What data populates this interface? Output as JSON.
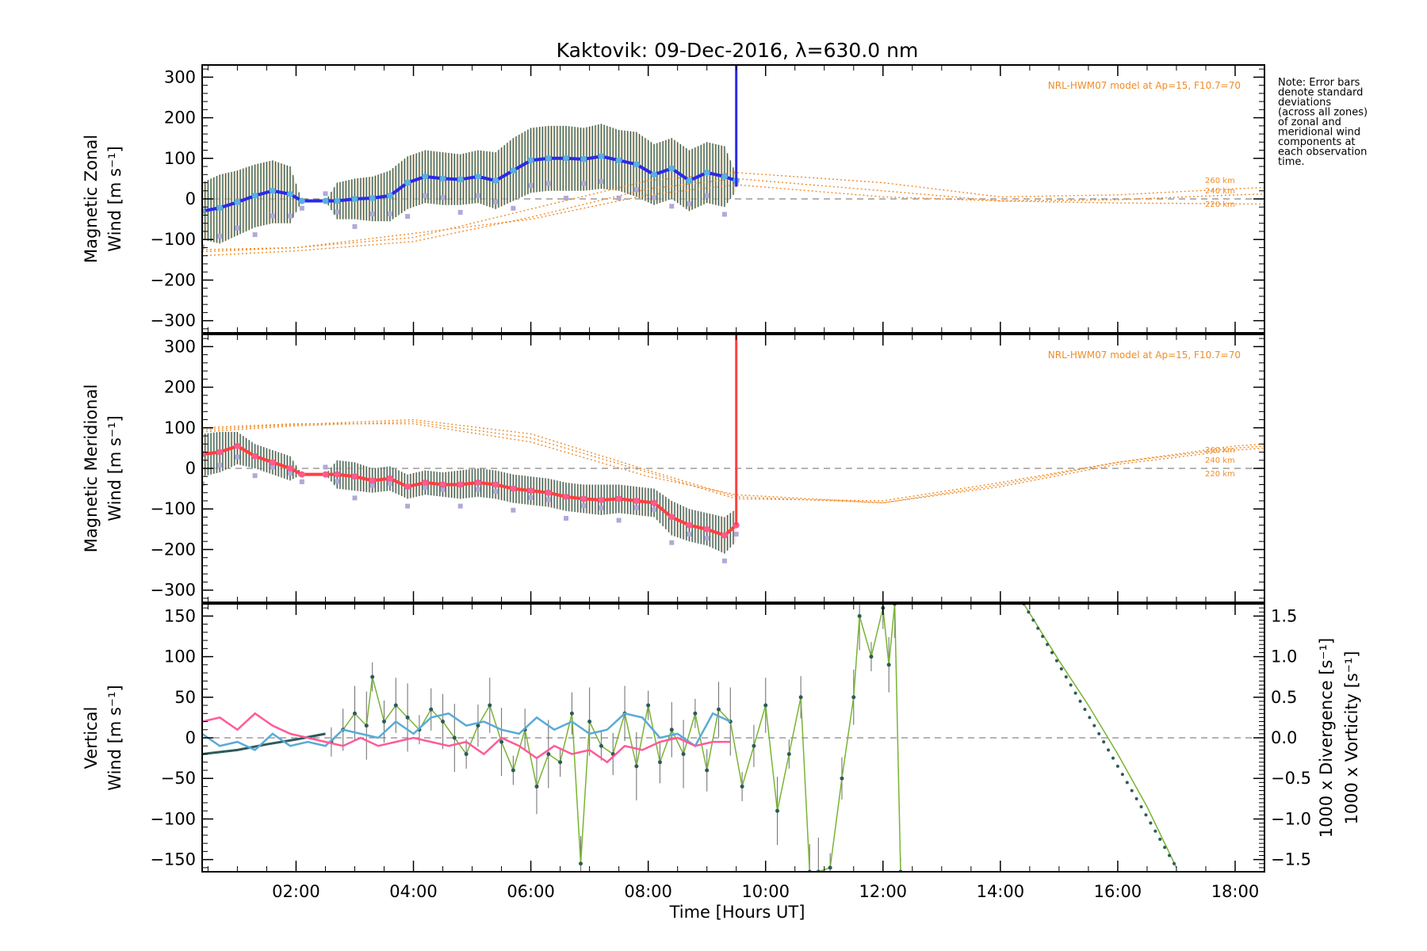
{
  "figure": {
    "title": "Kaktovik: 09-Dec-2016, λ=630.0 nm",
    "note_lines": [
      "Note: Error bars",
      "denote standard",
      "deviations",
      "(across all zones)",
      "of zonal and",
      "meridional wind",
      "components at",
      "each observation",
      "time."
    ],
    "model_label": "NRL-HWM07 model at Ap=15, F10.7=70",
    "altitude_labels": [
      "260 km",
      "240 km",
      "220 km"
    ],
    "xlabel": "Time [Hours UT]",
    "x_tick_labels": [
      "02:00",
      "04:00",
      "06:00",
      "08:00",
      "10:00",
      "12:00",
      "14:00",
      "16:00",
      "18:00"
    ]
  },
  "colors": {
    "zonal_mean": "#2a2ae8",
    "zonal_points": "#5ab0e0",
    "meridional_mean": "#ff4040",
    "meridional_points": "#ff5a8c",
    "model": "#f08c28",
    "vertical": "#78b432",
    "divergence": "#5aaad8",
    "vorticity": "#ff5a9a",
    "error_bar": "#2d5a5a",
    "scatter_lavender": "#b0aad8"
  },
  "chart_data": [
    {
      "type": "line",
      "panel": "zonal",
      "ylabel_lines": [
        "Magnetic Zonal",
        "Wind [m s⁻¹]"
      ],
      "xlim": [
        0.4,
        18.5
      ],
      "ylim": [
        -330,
        330
      ],
      "y_tick_labels": [
        "300",
        "200",
        "100",
        "0",
        "−100",
        "−200",
        "−300"
      ],
      "y_tick_values": [
        300,
        200,
        100,
        0,
        -100,
        -200,
        -300
      ],
      "x_tick_values": [
        2,
        4,
        6,
        8,
        10,
        12,
        14,
        16,
        18
      ],
      "series": [
        {
          "role": "mean",
          "x": [
            0.4,
            0.7,
            1.0,
            1.3,
            1.6,
            1.9,
            2.1,
            2.5,
            2.7,
            3.0,
            3.3,
            3.6,
            3.9,
            4.2,
            4.5,
            4.8,
            5.1,
            5.4,
            5.7,
            6.0,
            6.3,
            6.6,
            6.9,
            7.2,
            7.5,
            7.8,
            8.1,
            8.4,
            8.7,
            9.0,
            9.3,
            9.5
          ],
          "y": [
            -30,
            -22,
            -8,
            8,
            20,
            12,
            -5,
            -5,
            -5,
            0,
            2,
            8,
            40,
            55,
            50,
            48,
            55,
            45,
            70,
            95,
            100,
            100,
            98,
            105,
            95,
            85,
            60,
            75,
            45,
            65,
            55,
            45
          ]
        },
        {
          "role": "upper",
          "y": [
            40,
            60,
            70,
            85,
            95,
            80,
            -5,
            -5,
            40,
            50,
            55,
            70,
            105,
            120,
            115,
            110,
            120,
            115,
            150,
            175,
            180,
            180,
            175,
            185,
            170,
            165,
            135,
            150,
            120,
            140,
            130,
            60
          ]
        },
        {
          "role": "lower",
          "y": [
            -100,
            -110,
            -90,
            -70,
            -60,
            -60,
            -5,
            -5,
            -50,
            -50,
            -55,
            -55,
            -25,
            -10,
            -15,
            -15,
            -10,
            -25,
            -5,
            15,
            20,
            20,
            20,
            25,
            20,
            5,
            -15,
            0,
            -30,
            -10,
            -20,
            20
          ]
        },
        {
          "role": "model_260km",
          "x": [
            0.4,
            2,
            4,
            6,
            8,
            9.5,
            12,
            14,
            16,
            18,
            18.5
          ],
          "y": [
            -130,
            -120,
            -95,
            -25,
            45,
            65,
            40,
            5,
            10,
            25,
            28
          ]
        },
        {
          "role": "model_240km",
          "x": [
            0.4,
            2,
            4,
            6,
            8,
            9.5,
            12,
            14,
            16,
            18,
            18.5
          ],
          "y": [
            -140,
            -128,
            -105,
            -45,
            25,
            50,
            20,
            -5,
            -2,
            10,
            12
          ]
        },
        {
          "role": "model_220km",
          "x": [
            0.4,
            2,
            4,
            6,
            8,
            9.5,
            12,
            14,
            16,
            18,
            18.5
          ],
          "y": [
            -125,
            -120,
            -85,
            -50,
            10,
            35,
            5,
            -5,
            -10,
            -12,
            -12
          ]
        }
      ],
      "vertical_line": {
        "x": 9.5,
        "y_from": 30,
        "y_to": 330
      }
    },
    {
      "type": "line",
      "panel": "meridional",
      "ylabel_lines": [
        "Magnetic Meridional",
        "Wind [m s⁻¹]"
      ],
      "xlim": [
        0.4,
        18.5
      ],
      "ylim": [
        -330,
        330
      ],
      "y_tick_labels": [
        "300",
        "200",
        "100",
        "0",
        "−100",
        "−200",
        "−300"
      ],
      "y_tick_values": [
        300,
        200,
        100,
        0,
        -100,
        -200,
        -300
      ],
      "x_tick_values": [
        2,
        4,
        6,
        8,
        10,
        12,
        14,
        16,
        18
      ],
      "series": [
        {
          "role": "mean",
          "x": [
            0.4,
            0.7,
            1.0,
            1.3,
            1.6,
            1.9,
            2.1,
            2.5,
            2.7,
            3.0,
            3.3,
            3.6,
            3.9,
            4.2,
            4.5,
            4.8,
            5.1,
            5.4,
            5.7,
            6.0,
            6.3,
            6.6,
            6.9,
            7.2,
            7.5,
            7.8,
            8.1,
            8.4,
            8.7,
            9.0,
            9.3,
            9.5
          ],
          "y": [
            35,
            40,
            55,
            30,
            15,
            0,
            -15,
            -15,
            -15,
            -20,
            -30,
            -25,
            -45,
            -35,
            -40,
            -40,
            -35,
            -40,
            -50,
            -55,
            -60,
            -70,
            -75,
            -78,
            -75,
            -80,
            -85,
            -120,
            -140,
            -150,
            -165,
            -140
          ]
        },
        {
          "role": "upper",
          "y": [
            85,
            90,
            90,
            60,
            45,
            30,
            -15,
            -15,
            20,
            15,
            0,
            5,
            -15,
            -5,
            -10,
            -5,
            0,
            -5,
            -15,
            -20,
            -25,
            -35,
            -40,
            -40,
            -40,
            -45,
            -50,
            -80,
            -100,
            -110,
            -120,
            -100
          ]
        },
        {
          "role": "lower",
          "y": [
            -20,
            -10,
            10,
            0,
            -15,
            -30,
            -15,
            -15,
            -50,
            -55,
            -60,
            -55,
            -75,
            -65,
            -70,
            -75,
            -70,
            -75,
            -85,
            -90,
            -95,
            -105,
            -110,
            -115,
            -110,
            -115,
            -120,
            -165,
            -180,
            -190,
            -210,
            -180
          ]
        },
        {
          "role": "model_260km",
          "x": [
            0.4,
            2,
            4,
            6,
            8,
            9.5,
            12,
            14,
            16,
            18,
            18.5
          ],
          "y": [
            100,
            110,
            110,
            65,
            -20,
            -65,
            -85,
            -40,
            15,
            50,
            55
          ]
        },
        {
          "role": "model_240km",
          "x": [
            0.4,
            2,
            4,
            6,
            8,
            9.5,
            12,
            14,
            16,
            18,
            18.5
          ],
          "y": [
            90,
            105,
            115,
            75,
            -10,
            -75,
            -80,
            -35,
            15,
            55,
            60
          ]
        },
        {
          "role": "model_220km",
          "x": [
            0.4,
            2,
            4,
            6,
            8,
            9.5,
            12,
            14,
            16,
            18,
            18.5
          ],
          "y": [
            95,
            108,
            120,
            85,
            -5,
            -70,
            -85,
            -45,
            10,
            45,
            50
          ]
        }
      ],
      "vertical_line": {
        "x": 9.5,
        "y_from": -140,
        "y_to": 330
      }
    },
    {
      "type": "line",
      "panel": "vertical",
      "ylabel_lines": [
        "Vertical",
        "Wind [m s⁻¹]"
      ],
      "y2label_lines": [
        "1000 x Divergence [s⁻¹]",
        "1000 x Vorticity [s⁻¹]"
      ],
      "xlim": [
        0.4,
        18.5
      ],
      "ylim": [
        -165,
        165
      ],
      "y_tick_labels": [
        "150",
        "100",
        "50",
        "0",
        "−50",
        "−100",
        "−150"
      ],
      "y_tick_values": [
        150,
        100,
        50,
        0,
        -50,
        -100,
        -150
      ],
      "y2lim": [
        -1.65,
        1.65
      ],
      "y2_tick_labels": [
        "1.5",
        "1.0",
        "0.5",
        "0.0",
        "−0.5",
        "−1.0",
        "−1.5"
      ],
      "y2_tick_values": [
        1.5,
        1.0,
        0.5,
        0.0,
        -0.5,
        -1.0,
        -1.5
      ],
      "x_tick_values": [
        2,
        4,
        6,
        8,
        10,
        12,
        14,
        16,
        18
      ],
      "series": [
        {
          "role": "vertical_wind",
          "x": [
            2.6,
            2.8,
            3.0,
            3.2,
            3.3,
            3.5,
            3.7,
            3.9,
            4.1,
            4.3,
            4.5,
            4.7,
            4.9,
            5.1,
            5.3,
            5.5,
            5.7,
            5.9,
            6.1,
            6.3,
            6.5,
            6.7,
            6.85,
            7.0,
            7.2,
            7.4,
            7.6,
            7.8,
            8.0,
            8.2,
            8.4,
            8.6,
            8.8,
            9.0,
            9.2,
            9.4,
            9.6,
            9.8,
            10.0,
            10.2,
            10.4,
            10.6,
            10.75,
            10.9,
            11.1,
            11.3,
            11.5,
            11.6,
            11.8,
            12.0,
            12.1,
            12.2,
            12.3
          ],
          "y": [
            -5,
            10,
            30,
            15,
            75,
            20,
            40,
            25,
            10,
            35,
            20,
            0,
            -20,
            15,
            40,
            -5,
            -40,
            10,
            -60,
            -20,
            -30,
            30,
            -155,
            20,
            -10,
            -20,
            30,
            -35,
            40,
            -30,
            10,
            -20,
            30,
            -40,
            35,
            20,
            -60,
            -10,
            40,
            -90,
            -20,
            50,
            -165,
            -165,
            -160,
            -50,
            50,
            150,
            100,
            160,
            90,
            165,
            -165
          ]
        },
        {
          "role": "vertical_trend",
          "x": [
            0.4,
            1.0,
            1.5,
            2.0,
            2.5
          ],
          "y": [
            -20,
            -15,
            -8,
            -2,
            5
          ]
        },
        {
          "role": "vertical_late_line",
          "x": [
            14.4,
            15.0,
            15.5,
            16.0,
            16.5,
            17.0
          ],
          "y": [
            165,
            95,
            40,
            -20,
            -85,
            -160
          ]
        },
        {
          "role": "divergence",
          "x": [
            0.4,
            0.7,
            1.0,
            1.3,
            1.6,
            1.9,
            2.2,
            2.5,
            2.8,
            3.1,
            3.4,
            3.7,
            4.0,
            4.3,
            4.6,
            4.9,
            5.2,
            5.5,
            5.8,
            6.1,
            6.4,
            6.7,
            7.0,
            7.3,
            7.6,
            7.9,
            8.2,
            8.5,
            8.8,
            9.1,
            9.4
          ],
          "y": [
            0.05,
            -0.1,
            -0.05,
            -0.15,
            0.05,
            -0.1,
            -0.05,
            -0.1,
            0.1,
            0.05,
            0.0,
            0.2,
            0.05,
            0.25,
            0.3,
            0.15,
            0.2,
            0.1,
            0.05,
            0.25,
            0.1,
            0.2,
            0.05,
            0.1,
            0.3,
            0.25,
            0.0,
            0.05,
            -0.1,
            0.3,
            0.2
          ]
        },
        {
          "role": "vorticity",
          "x": [
            0.4,
            0.7,
            1.0,
            1.3,
            1.6,
            1.9,
            2.2,
            2.5,
            2.8,
            3.1,
            3.4,
            3.7,
            4.0,
            4.3,
            4.6,
            4.9,
            5.2,
            5.5,
            5.8,
            6.1,
            6.4,
            6.7,
            7.0,
            7.3,
            7.6,
            7.9,
            8.2,
            8.5,
            8.8,
            9.1,
            9.4
          ],
          "y": [
            0.2,
            0.25,
            0.1,
            0.3,
            0.15,
            0.05,
            0.0,
            -0.05,
            -0.1,
            0.0,
            -0.1,
            -0.05,
            0.0,
            -0.05,
            -0.1,
            -0.05,
            -0.2,
            0.0,
            -0.1,
            -0.25,
            -0.1,
            -0.2,
            -0.15,
            -0.3,
            -0.1,
            -0.15,
            -0.05,
            0.0,
            -0.1,
            -0.05,
            -0.05
          ]
        }
      ]
    }
  ]
}
